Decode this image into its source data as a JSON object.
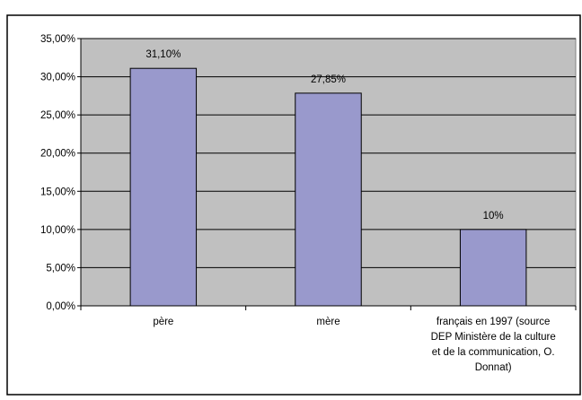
{
  "chart_data": {
    "type": "bar",
    "categories": [
      [
        "père"
      ],
      [
        "mère"
      ],
      [
        "français en 1997 (source",
        "DEP Ministère de la culture",
        "et de la communication, O.",
        "Donnat)"
      ]
    ],
    "values": [
      31.1,
      27.85,
      10
    ],
    "data_labels": [
      "31,10%",
      "27,85%",
      "10%"
    ],
    "y_ticks": [
      "0,00%",
      "5,00%",
      "10,00%",
      "15,00%",
      "20,00%",
      "25,00%",
      "30,00%",
      "35,00%"
    ],
    "ylim": [
      0,
      35
    ],
    "grid": true,
    "legend": "none",
    "colors": {
      "bar_fill": "#9999cc",
      "plot_background": "#c0c0c0",
      "gridline": "#000000",
      "frame": "#000000"
    }
  }
}
